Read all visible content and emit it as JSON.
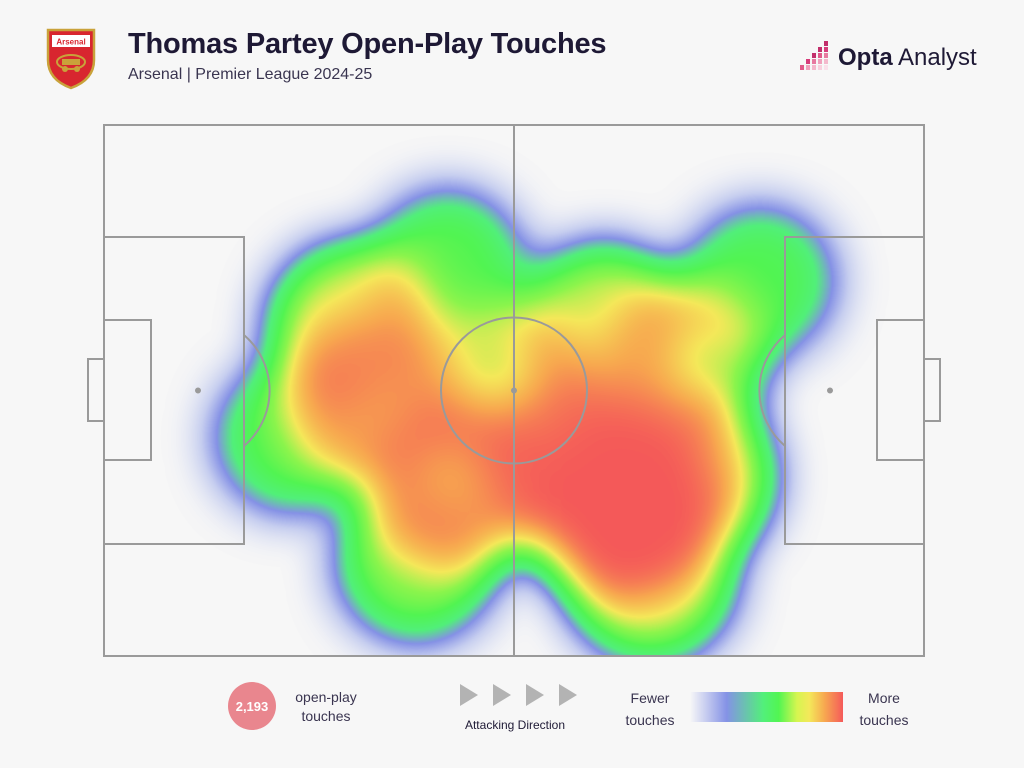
{
  "header": {
    "title": "Thomas Partey Open-Play Touches",
    "subtitle": "Arsenal | Premier League 2024-25",
    "crest_text": "Arsenal",
    "brand": {
      "bold": "Opta",
      "light": "Analyst"
    }
  },
  "stats": {
    "touches": "2,193",
    "touches_label": "open-play touches"
  },
  "direction": {
    "label": "Attacking Direction"
  },
  "legend": {
    "low_label": "Fewer touches",
    "high_label": "More touches"
  },
  "colors": {
    "title": "#1e1935",
    "badge": "#e9868e",
    "pitch_lines": "#9a9a9a",
    "heat_low": "#8492e6",
    "heat_mid": "#52f552",
    "heat_high": "#f55a5a"
  },
  "chart_data": {
    "type": "heatmap",
    "title": "Thomas Partey Open-Play Touches",
    "subtitle": "Arsenal | Premier League 2024-25",
    "surface": "football pitch (105 x 68 m), attacking left to right",
    "x_range": [
      0,
      105
    ],
    "y_range": [
      0,
      68
    ],
    "hotspots": [
      {
        "x": 67,
        "y": 49,
        "intensity": 1.0
      },
      {
        "x": 60,
        "y": 44,
        "intensity": 0.75
      },
      {
        "x": 74,
        "y": 45,
        "intensity": 0.7
      },
      {
        "x": 44.5,
        "y": 46,
        "intensity": 0.72
      },
      {
        "x": 34,
        "y": 35,
        "intensity": 0.62
      },
      {
        "x": 32,
        "y": 26,
        "intensity": 0.55
      },
      {
        "x": 52,
        "y": 34,
        "intensity": 0.5
      },
      {
        "x": 64,
        "y": 26,
        "intensity": 0.5
      },
      {
        "x": 74,
        "y": 30,
        "intensity": 0.45
      },
      {
        "x": 70,
        "y": 58,
        "intensity": 0.5
      },
      {
        "x": 40,
        "y": 56,
        "intensity": 0.35
      },
      {
        "x": 44,
        "y": 18,
        "intensity": 0.25
      },
      {
        "x": 24,
        "y": 40,
        "intensity": 0.25
      },
      {
        "x": 84,
        "y": 20,
        "intensity": 0.22
      }
    ],
    "total_touches": 2193,
    "legend": [
      "Fewer touches",
      "More touches"
    ]
  }
}
